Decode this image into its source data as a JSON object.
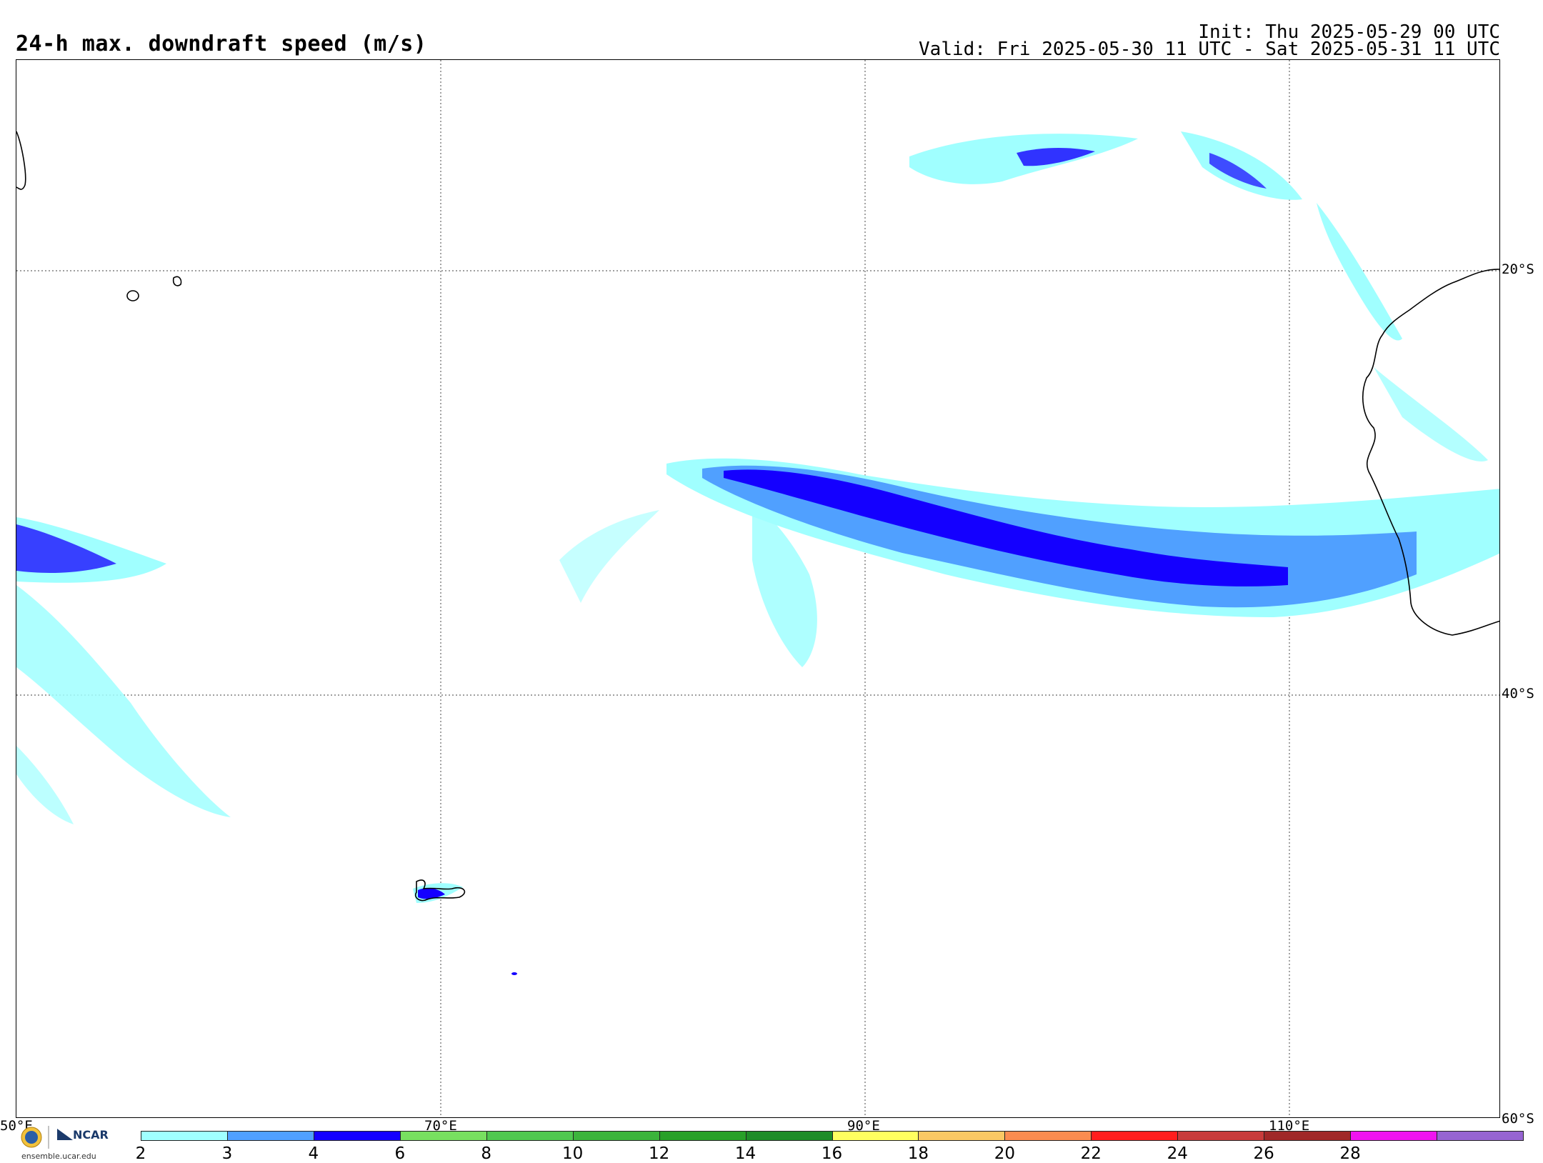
{
  "header": {
    "title": "24-h max. downdraft speed (m/s)",
    "init": "Init: Thu 2025-05-29 00 UTC",
    "valid": "Valid: Fri 2025-05-30 11 UTC - Sat 2025-05-31 11 UTC"
  },
  "map": {
    "lat_labels": [
      "20°S",
      "40°S",
      "60°S"
    ],
    "lon_labels": [
      "50°E",
      "70°E",
      "90°E",
      "110°E"
    ],
    "land_color": "#000000",
    "grid_color": "#666666"
  },
  "legend": {
    "colors": [
      "#a0ffff",
      "#50a0ff",
      "#1400ff",
      "#78e060",
      "#50c850",
      "#3cb43c",
      "#28a028",
      "#1e8c28",
      "#ffff60",
      "#fac864",
      "#fa8c50",
      "#ff1e1e",
      "#c83c3c",
      "#a02828",
      "#f014f0",
      "#9664d2"
    ],
    "ticks": [
      "2",
      "3",
      "4",
      "6",
      "8",
      "10",
      "12",
      "14",
      "16",
      "18",
      "20",
      "22",
      "24",
      "26",
      "28"
    ]
  },
  "logos": {
    "ncar": "NCAR",
    "url": "ensemble.ucar.edu",
    "nsf": "NSF"
  }
}
